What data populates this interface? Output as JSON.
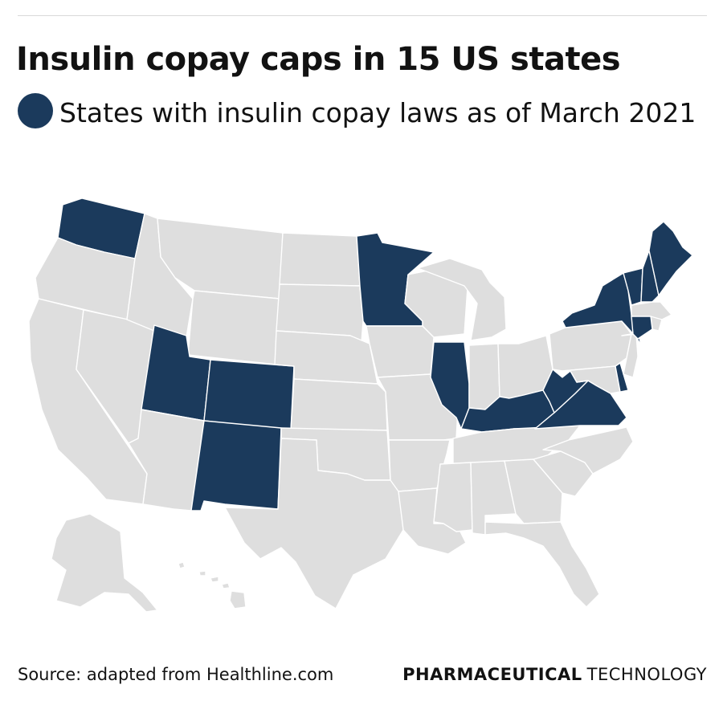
{
  "title": "Insulin copay caps in 15 US states",
  "legend": {
    "label": "States with insulin copay laws as of March 2021",
    "color": "#1b3a5c"
  },
  "map": {
    "base_color": "#dedede",
    "highlight_color": "#1b3a5c",
    "border_color": "#ffffff",
    "highlighted_states": [
      "Washington",
      "Utah",
      "Colorado",
      "New Mexico",
      "Minnesota",
      "Illinois",
      "Kentucky",
      "West Virginia",
      "Virginia",
      "Delaware",
      "New York",
      "Vermont",
      "New Hampshire",
      "Maine",
      "Connecticut"
    ]
  },
  "footer": {
    "source": "Source: adapted from Healthline.com",
    "brand_strong": "PHARMACEUTICAL",
    "brand_light": "TECHNOLOGY"
  }
}
